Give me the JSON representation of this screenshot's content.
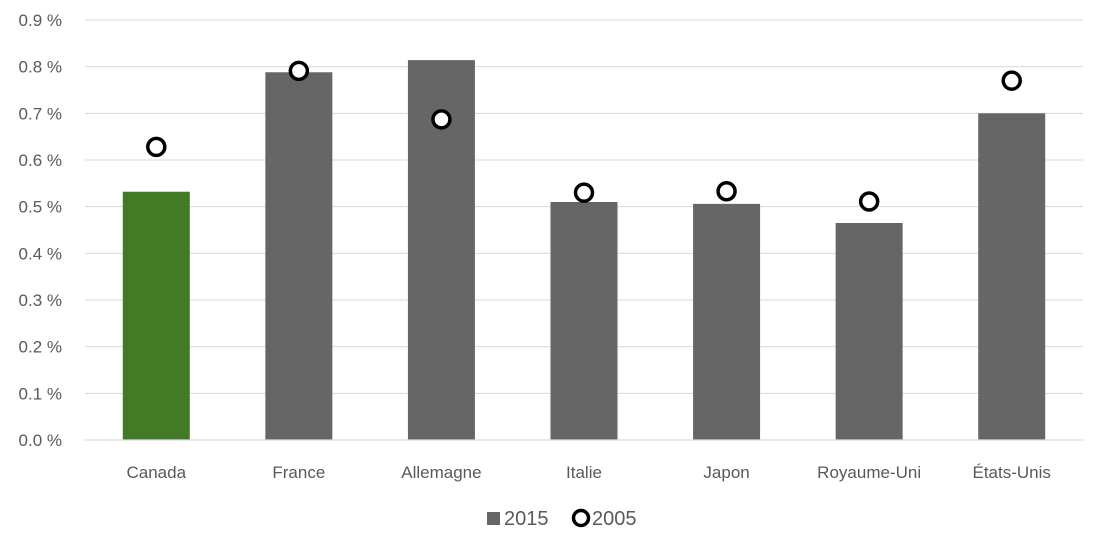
{
  "chart_data": {
    "type": "bar",
    "title": "",
    "xlabel": "",
    "ylabel": "",
    "categories": [
      "Canada",
      "France",
      "Allemagne",
      "Italie",
      "Japon",
      "Royaume-Uni",
      "États-Unis"
    ],
    "series": [
      {
        "name": "2015",
        "mark": "bar",
        "color": "#666666",
        "highlight": {
          "category": "Canada",
          "color": "#437A26"
        },
        "values": [
          0.532,
          0.788,
          0.814,
          0.51,
          0.506,
          0.465,
          0.7
        ]
      },
      {
        "name": "2005",
        "mark": "circle-marker",
        "color": "#000000",
        "values": [
          0.628,
          0.791,
          0.687,
          0.53,
          0.533,
          0.511,
          0.77
        ]
      }
    ],
    "ylim": [
      0,
      0.9
    ],
    "yticks": [
      0,
      0.1,
      0.2,
      0.3,
      0.4,
      0.5,
      0.6,
      0.7,
      0.8,
      0.9
    ],
    "ytick_labels": [
      "0.0 %",
      "0.1 %",
      "0.2 %",
      "0.3 %",
      "0.4 %",
      "0.5 %",
      "0.6 %",
      "0.7 %",
      "0.8 %",
      "0.9 %"
    ],
    "grid": true,
    "gridline_color": "#d9d9d9",
    "legend": {
      "placement": "bottom-center",
      "entries": [
        "2015",
        "2005"
      ]
    }
  }
}
